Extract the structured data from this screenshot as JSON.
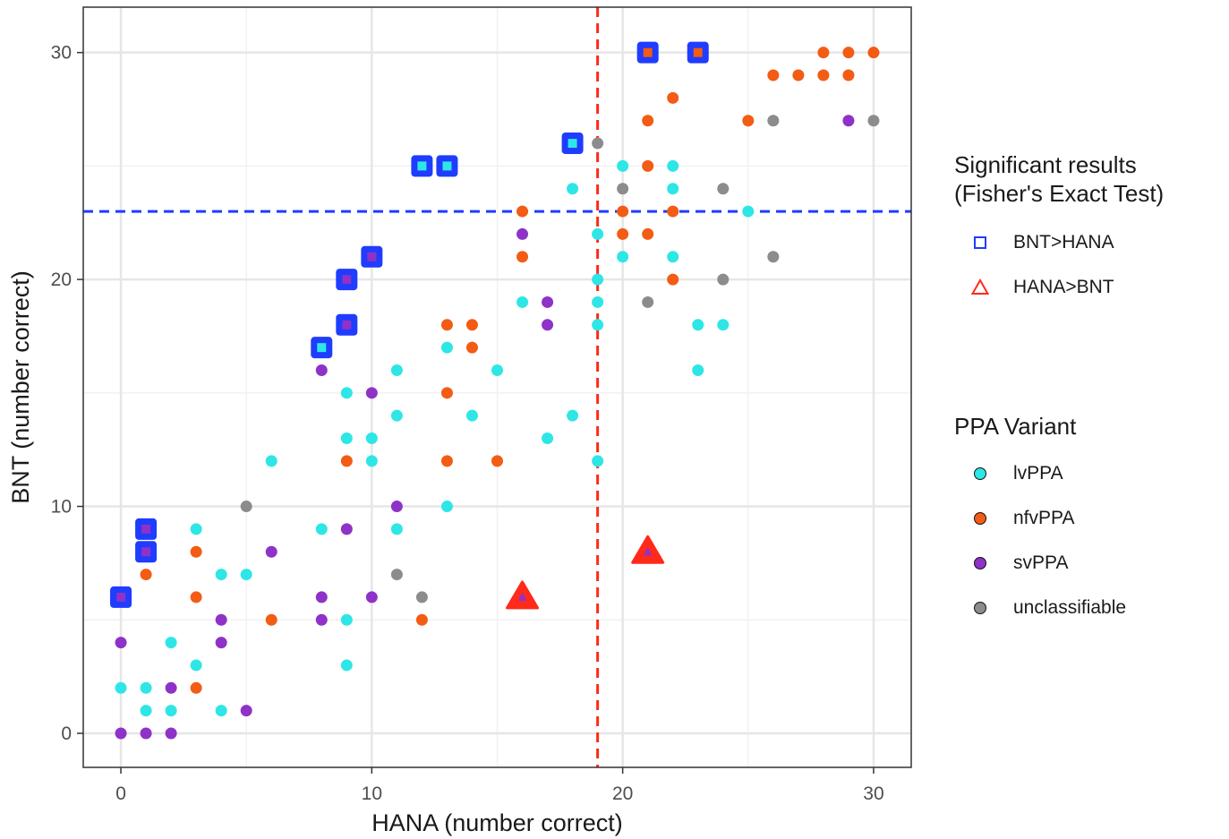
{
  "chart_data": {
    "type": "scatter",
    "xlabel": "HANA (number correct)",
    "ylabel": "BNT (number correct)",
    "xlim": [
      -1.5,
      31.5
    ],
    "ylim": [
      -1.5,
      32
    ],
    "xticks": [
      0,
      10,
      20,
      30
    ],
    "yticks": [
      0,
      10,
      20,
      30
    ],
    "grid": true,
    "reference_lines": {
      "vertical_x": 19,
      "horizontal_y": 23
    },
    "colors": {
      "lvPPA": "#2ee6e6",
      "nfvPPA": "#f25c14",
      "svPPA": "#8e32c8",
      "unclassifiable": "#8c8c8c",
      "bnt_gt_hana": "#1f3cff",
      "hana_gt_bnt": "#ff2a1a",
      "vline": "#ff2a1a",
      "hline": "#1f3cff",
      "grid": "#e6e6e6"
    },
    "series": [
      {
        "name": "lvPPA",
        "points": [
          [
            0,
            2
          ],
          [
            1,
            2
          ],
          [
            1,
            1
          ],
          [
            2,
            1
          ],
          [
            2,
            4
          ],
          [
            3,
            3
          ],
          [
            3,
            9
          ],
          [
            4,
            1
          ],
          [
            4,
            7
          ],
          [
            5,
            7
          ],
          [
            6,
            12
          ],
          [
            8,
            9
          ],
          [
            9,
            15
          ],
          [
            9,
            13
          ],
          [
            9,
            5
          ],
          [
            9,
            3
          ],
          [
            10,
            13
          ],
          [
            10,
            12
          ],
          [
            11,
            16
          ],
          [
            11,
            14
          ],
          [
            11,
            9
          ],
          [
            13,
            17
          ],
          [
            13,
            10
          ],
          [
            14,
            14
          ],
          [
            15,
            16
          ],
          [
            16,
            19
          ],
          [
            17,
            13
          ],
          [
            18,
            24
          ],
          [
            18,
            14
          ],
          [
            19,
            22
          ],
          [
            19,
            20
          ],
          [
            19,
            19
          ],
          [
            19,
            18
          ],
          [
            19,
            12
          ],
          [
            20,
            25
          ],
          [
            20,
            21
          ],
          [
            22,
            25
          ],
          [
            22,
            24
          ],
          [
            22,
            21
          ],
          [
            23,
            18
          ],
          [
            23,
            16
          ],
          [
            24,
            18
          ],
          [
            25,
            23
          ]
        ]
      },
      {
        "name": "nfvPPA",
        "points": [
          [
            1,
            7
          ],
          [
            3,
            8
          ],
          [
            3,
            6
          ],
          [
            3,
            2
          ],
          [
            6,
            5
          ],
          [
            9,
            12
          ],
          [
            12,
            5
          ],
          [
            13,
            18
          ],
          [
            13,
            15
          ],
          [
            13,
            12
          ],
          [
            14,
            18
          ],
          [
            14,
            17
          ],
          [
            15,
            12
          ],
          [
            16,
            23
          ],
          [
            16,
            21
          ],
          [
            20,
            23
          ],
          [
            20,
            22
          ],
          [
            21,
            27
          ],
          [
            21,
            25
          ],
          [
            21,
            22
          ],
          [
            22,
            28
          ],
          [
            22,
            23
          ],
          [
            22,
            20
          ],
          [
            25,
            27
          ],
          [
            26,
            29
          ],
          [
            27,
            29
          ],
          [
            28,
            30
          ],
          [
            28,
            29
          ],
          [
            29,
            30
          ],
          [
            29,
            29
          ],
          [
            30,
            30
          ]
        ]
      },
      {
        "name": "svPPA",
        "points": [
          [
            0,
            4
          ],
          [
            0,
            0
          ],
          [
            1,
            0
          ],
          [
            2,
            2
          ],
          [
            2,
            0
          ],
          [
            4,
            5
          ],
          [
            4,
            4
          ],
          [
            5,
            1
          ],
          [
            6,
            8
          ],
          [
            8,
            16
          ],
          [
            8,
            6
          ],
          [
            8,
            5
          ],
          [
            9,
            9
          ],
          [
            10,
            15
          ],
          [
            10,
            6
          ],
          [
            11,
            10
          ],
          [
            16,
            22
          ],
          [
            17,
            19
          ],
          [
            17,
            18
          ],
          [
            29,
            27
          ]
        ]
      },
      {
        "name": "unclassifiable",
        "points": [
          [
            5,
            10
          ],
          [
            11,
            7
          ],
          [
            12,
            6
          ],
          [
            19,
            26
          ],
          [
            20,
            24
          ],
          [
            21,
            19
          ],
          [
            24,
            24
          ],
          [
            24,
            20
          ],
          [
            26,
            27
          ],
          [
            26,
            21
          ],
          [
            30,
            27
          ]
        ]
      }
    ],
    "significant": {
      "bnt_gt_hana": [
        {
          "x": 0,
          "y": 6,
          "variant": "svPPA"
        },
        {
          "x": 1,
          "y": 9,
          "variant": "svPPA"
        },
        {
          "x": 1,
          "y": 8,
          "variant": "svPPA"
        },
        {
          "x": 8,
          "y": 17,
          "variant": "lvPPA"
        },
        {
          "x": 9,
          "y": 20,
          "variant": "svPPA"
        },
        {
          "x": 9,
          "y": 18,
          "variant": "svPPA"
        },
        {
          "x": 10,
          "y": 21,
          "variant": "svPPA"
        },
        {
          "x": 12,
          "y": 25,
          "variant": "lvPPA"
        },
        {
          "x": 13,
          "y": 25,
          "variant": "lvPPA"
        },
        {
          "x": 18,
          "y": 26,
          "variant": "lvPPA"
        },
        {
          "x": 21,
          "y": 30,
          "variant": "nfvPPA"
        },
        {
          "x": 23,
          "y": 30,
          "variant": "nfvPPA"
        }
      ],
      "hana_gt_bnt": [
        {
          "x": 16,
          "y": 6,
          "variant": "svPPA"
        },
        {
          "x": 21,
          "y": 8,
          "variant": "svPPA"
        }
      ]
    }
  },
  "legend": {
    "sig_title_line1": "Significant results",
    "sig_title_line2": "(Fisher's Exact Test)",
    "sig_items": [
      "BNT>HANA",
      "HANA>BNT"
    ],
    "variant_title": "PPA Variant",
    "variant_items": [
      "lvPPA",
      "nfvPPA",
      "svPPA",
      "unclassifiable"
    ]
  }
}
